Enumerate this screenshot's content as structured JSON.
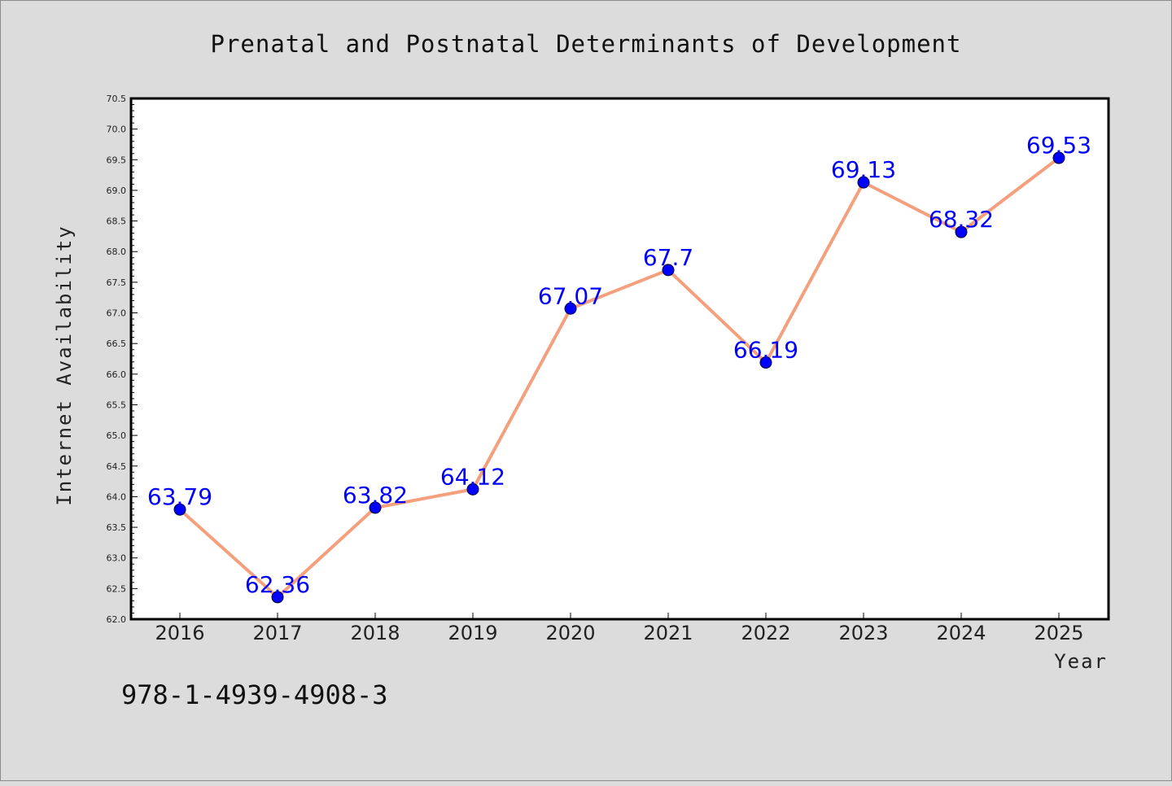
{
  "chart_data": {
    "type": "line",
    "title": "Prenatal and Postnatal Determinants of Development",
    "xlabel": "Year",
    "ylabel": "Internet Availability",
    "x": [
      "2016",
      "2017",
      "2018",
      "2019",
      "2020",
      "2021",
      "2022",
      "2023",
      "2024",
      "2025"
    ],
    "values": [
      63.79,
      62.36,
      63.82,
      64.12,
      67.07,
      67.7,
      66.19,
      69.13,
      68.32,
      69.53
    ],
    "data_labels": [
      "63.79",
      "62.36",
      "63.82",
      "64.12",
      "67.07",
      "67.7",
      "66.19",
      "69.13",
      "68.32",
      "69.53"
    ],
    "ylim": [
      62.0,
      70.5
    ],
    "yticks": [
      "62.0",
      "62.5",
      "63.0",
      "63.5",
      "64.0",
      "64.5",
      "65.0",
      "65.5",
      "66.0",
      "66.5",
      "67.0",
      "67.5",
      "68.0",
      "68.5",
      "69.0",
      "69.5",
      "70.0",
      "70.5"
    ],
    "grid": false,
    "line_color": "#f4a07e",
    "marker_color": "#0000ff",
    "label_color": "#0000ff"
  },
  "annotation": "978-1-4939-4908-3"
}
